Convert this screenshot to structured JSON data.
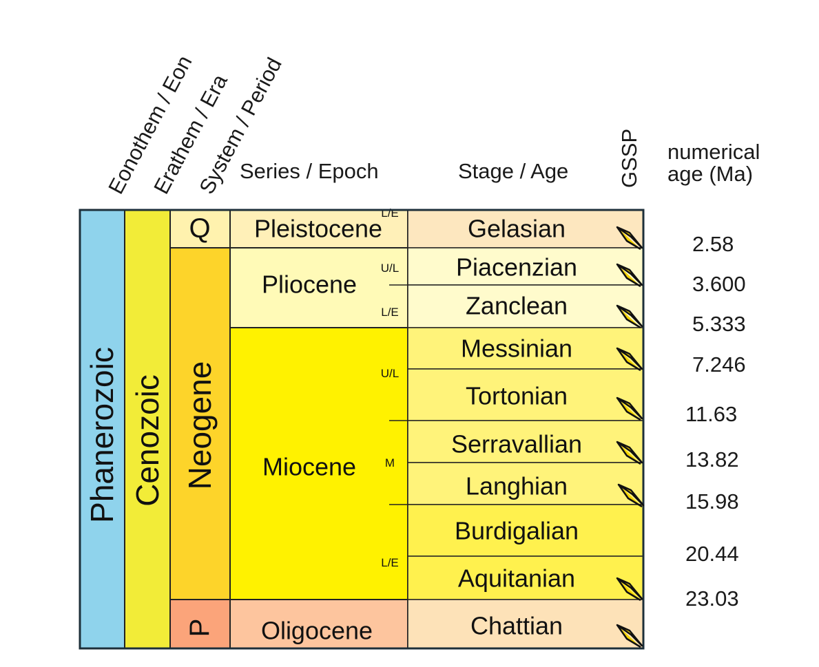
{
  "headers": {
    "eon": "Eonothem / Eon",
    "era": "Erathem / Era",
    "period": "System / Period",
    "epoch": "Series / Epoch",
    "stage": "Stage / Age",
    "gssp": "GSSP",
    "age_line1": "numerical",
    "age_line2": "age (Ma)"
  },
  "eon": {
    "label": "Phanerozoic",
    "color": "#8fd3ec"
  },
  "era": {
    "label": "Cenozoic",
    "color": "#f2ec38"
  },
  "periods": [
    {
      "label": "Q",
      "color": "#fff2ae",
      "upright": true
    },
    {
      "label": "Neogene",
      "color": "#fdd42a",
      "upright": false
    },
    {
      "label": "P",
      "color": "#fba47a",
      "upright": false
    }
  ],
  "epochs": [
    {
      "label": "Pleistocene",
      "color": "#fff0b8"
    },
    {
      "label": "Pliocene",
      "color": "#fffab7"
    },
    {
      "label": "Miocene",
      "color": "#fff200"
    },
    {
      "label": "Oligocene",
      "color": "#fdc59e"
    }
  ],
  "subdivisions": [
    {
      "label": "L/E"
    },
    {
      "label": "U/L"
    },
    {
      "label": "L/E"
    },
    {
      "label": "U/L"
    },
    {
      "label": "M"
    },
    {
      "label": "L/E"
    }
  ],
  "stages": [
    {
      "label": "Gelasian",
      "color": "#fde7bf",
      "gssp": true
    },
    {
      "label": "Piacenzian",
      "color": "#fffbcc",
      "gssp": true
    },
    {
      "label": "Zanclean",
      "color": "#fffbcc",
      "gssp": true
    },
    {
      "label": "Messinian",
      "color": "#fff37a",
      "gssp": true
    },
    {
      "label": "Tortonian",
      "color": "#fff37a",
      "gssp": true
    },
    {
      "label": "Serravallian",
      "color": "#fff37a",
      "gssp": true
    },
    {
      "label": "Langhian",
      "color": "#fff37a",
      "gssp": true
    },
    {
      "label": "Burdigalian",
      "color": "#fff14e",
      "gssp": false
    },
    {
      "label": "Aquitanian",
      "color": "#fff14e",
      "gssp": true
    },
    {
      "label": "Chattian",
      "color": "#fde2b8",
      "gssp": true
    }
  ],
  "ages": [
    "2.58",
    "3.600",
    "5.333",
    "7.246",
    "11.63",
    "13.82",
    "15.98",
    "20.44",
    "23.03"
  ]
}
